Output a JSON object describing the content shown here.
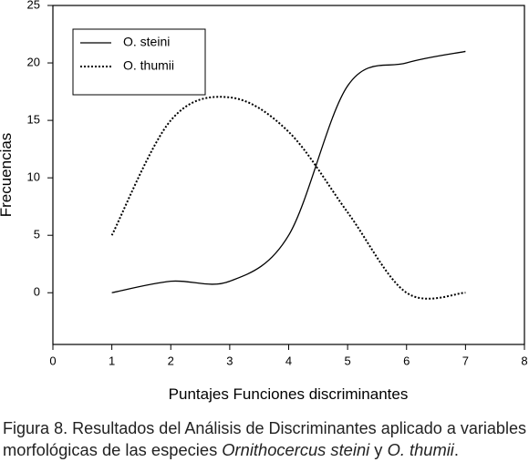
{
  "chart_data": {
    "type": "line",
    "xlabel": "Puntajes Funciones discriminantes",
    "ylabel": "Frecuencias",
    "x": [
      1,
      2,
      3,
      4,
      5,
      6,
      7
    ],
    "series": [
      {
        "name": "O. steini",
        "color": "#000000",
        "style": "solid",
        "values": [
          0,
          1,
          1,
          5,
          18,
          20,
          21
        ]
      },
      {
        "name": "O. thumii",
        "color": "#000000",
        "style": "dotted",
        "values": [
          5,
          15,
          17,
          14,
          7,
          0,
          0
        ]
      }
    ],
    "xlim": [
      0,
      8
    ],
    "xticks": [
      0,
      1,
      2,
      3,
      4,
      5,
      6,
      7,
      8
    ],
    "ylim": [
      -4.5,
      25
    ],
    "yticks": [
      0,
      5,
      10,
      15,
      20,
      25
    ],
    "legend": "upper left",
    "grid": false
  },
  "caption": [
    [
      "Figura 8. Resultados del Análisis de Discriminantes aplicado a variables"
    ],
    [
      "morfológicas de las especies ",
      "Ornithocercus steini",
      " y ",
      "O. thumii",
      "."
    ]
  ]
}
